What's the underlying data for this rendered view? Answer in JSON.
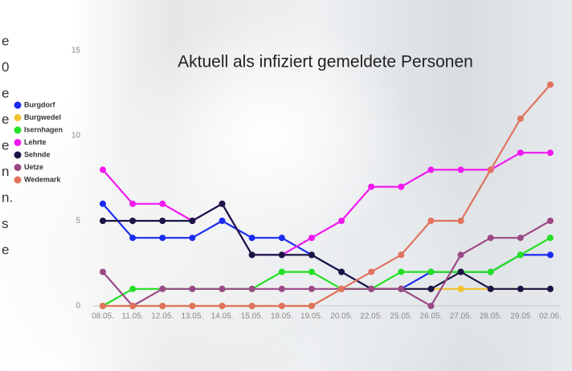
{
  "chart_data": {
    "type": "line",
    "title": "Aktuell als infiziert gemeldete Personen",
    "categories": [
      "08.05.",
      "11.05.",
      "12.05.",
      "13.05.",
      "14.05.",
      "15.05.",
      "18.05.",
      "19.05.",
      "20.05.",
      "22.05.",
      "25.05.",
      "26.05.",
      "27.05.",
      "28.05.",
      "29.05",
      "02.06."
    ],
    "series": [
      {
        "name": "Burgdorf",
        "color": "#1a2cf0",
        "values": [
          6,
          4,
          4,
          4,
          5,
          4,
          4,
          3,
          2,
          1,
          1,
          2,
          2,
          2,
          3,
          3
        ]
      },
      {
        "name": "Burgwedel",
        "color": "#f2c12e",
        "values": [
          0,
          0,
          0,
          0,
          0,
          0,
          0,
          0,
          1,
          1,
          1,
          1,
          1,
          1,
          1,
          1
        ]
      },
      {
        "name": "Isernhagen",
        "color": "#22e022",
        "values": [
          0,
          1,
          1,
          1,
          1,
          1,
          2,
          2,
          1,
          1,
          2,
          2,
          2,
          2,
          3,
          4
        ]
      },
      {
        "name": "Lehrte",
        "color": "#f019f0",
        "values": [
          8,
          6,
          6,
          5,
          6,
          3,
          3,
          4,
          5,
          7,
          7,
          8,
          8,
          8,
          9,
          9
        ]
      },
      {
        "name": "Sehnde",
        "color": "#1b1446",
        "values": [
          5,
          5,
          5,
          5,
          6,
          3,
          3,
          3,
          2,
          1,
          1,
          1,
          2,
          1,
          1,
          1
        ]
      },
      {
        "name": "Uetze",
        "color": "#9b4a86",
        "values": [
          2,
          0,
          1,
          1,
          1,
          1,
          1,
          1,
          1,
          1,
          1,
          0,
          3,
          4,
          4,
          5
        ]
      },
      {
        "name": "Wedemark",
        "color": "#e0735e",
        "values": [
          0,
          0,
          0,
          0,
          0,
          0,
          0,
          0,
          1,
          2,
          3,
          5,
          5,
          8,
          11,
          13
        ]
      }
    ],
    "ylim": [
      0,
      15
    ],
    "yticks": [
      0,
      5,
      10,
      15
    ],
    "legend": "top-left",
    "grid": false
  },
  "side_text_fragments": [
    "e",
    "0",
    "e",
    "e",
    "e",
    "n",
    "n.",
    "s",
    "e"
  ]
}
